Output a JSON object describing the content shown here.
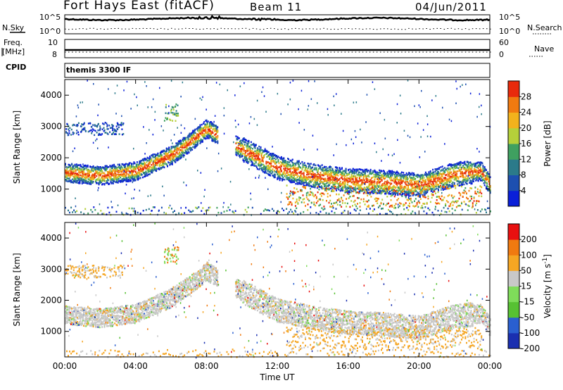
{
  "header": {
    "station": "Fort Hays East (fitACF)",
    "beam": "Beam 11",
    "date": "04/Jun/2011"
  },
  "top_panels": {
    "nsky_label": "N.Sky",
    "nsearch_label": "N.Search",
    "noise_ticks_left": [
      "10^5",
      "10^0"
    ],
    "noise_ticks_right": [
      "10^5",
      "10^0"
    ],
    "freq_label_1": "Freq.",
    "freq_label_2": "[MHz]",
    "freq_ticks": [
      "10",
      "8"
    ],
    "nave_label": "Nave",
    "nave_ticks": [
      "60",
      "0"
    ],
    "cpid_label": "CPID",
    "cpid_value": "themis 3300 IF"
  },
  "colors": {
    "power": [
      "#0a1fd8",
      "#1d4fb0",
      "#2b7a8a",
      "#3fa060",
      "#b5d03a",
      "#f2b21c",
      "#f07a10",
      "#e82a0c"
    ],
    "velocity": [
      "#1a2fb0",
      "#2a5fd0",
      "#57c133",
      "#7fdc5a",
      "#c8c8c8",
      "#f5a623",
      "#f07a10",
      "#e81010"
    ]
  },
  "chart_data": [
    {
      "type": "heatmap",
      "quantity": "Power",
      "ylabel": "Slant Range [km]",
      "xlabel": "Time UT",
      "x_ticks": [
        "00:00",
        "04:00",
        "08:00",
        "12:00",
        "16:00",
        "20:00",
        "00:00"
      ],
      "y_ticks": [
        "1000",
        "2000",
        "3000",
        "4000"
      ],
      "xlim_hours": [
        0,
        24
      ],
      "ylim_km": [
        180,
        4500
      ],
      "colorbar_label": "Power [dB]",
      "colorbar_ticks": [
        "28",
        "24",
        "20",
        "16",
        "12",
        "8",
        "4"
      ],
      "colorbar_range": [
        0,
        30
      ],
      "main_band_range_km": [
        [
          0,
          1550
        ],
        [
          2,
          1450
        ],
        [
          4,
          1600
        ],
        [
          6,
          2100
        ],
        [
          7,
          2500
        ],
        [
          8,
          2950
        ],
        [
          10,
          2300
        ],
        [
          12,
          1700
        ],
        [
          14,
          1450
        ],
        [
          16,
          1300
        ],
        [
          18,
          1250
        ],
        [
          20,
          1150
        ],
        [
          22,
          1500
        ],
        [
          23.5,
          1600
        ],
        [
          24,
          1150
        ]
      ]
    },
    {
      "type": "heatmap",
      "quantity": "Velocity",
      "ylabel": "Slant Range [km]",
      "xlabel": "Time UT",
      "x_ticks": [
        "00:00",
        "04:00",
        "08:00",
        "12:00",
        "16:00",
        "20:00",
        "00:00"
      ],
      "y_ticks": [
        "1000",
        "2000",
        "3000",
        "4000"
      ],
      "xlim_hours": [
        0,
        24
      ],
      "ylim_km": [
        180,
        4500
      ],
      "colorbar_label": "Velocity [m s^-1]",
      "colorbar_ticks": [
        "200",
        "100",
        "50",
        "15",
        "-15",
        "-50",
        "-100",
        "-200"
      ],
      "colorbar_range": [
        -250,
        250
      ]
    }
  ]
}
